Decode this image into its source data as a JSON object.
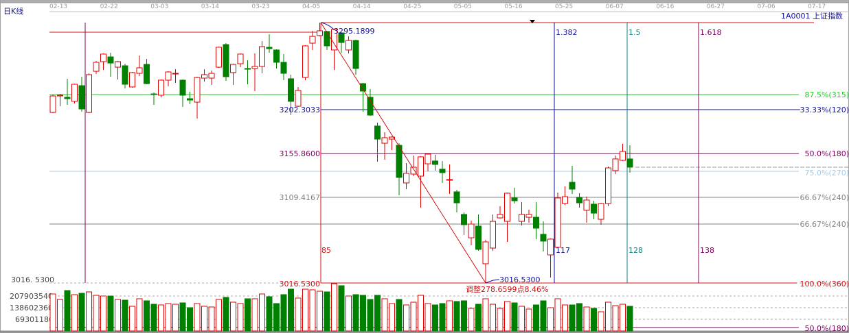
{
  "header": {
    "period_label": "日K线",
    "symbol_label": "1A0001 上证指数"
  },
  "colors": {
    "up": "#e00000",
    "down": "#008000",
    "fib_green": "#22cc22",
    "fib_blue": "#1010a0",
    "fib_purple": "#800060",
    "fib_lightblue": "#a8c8e0",
    "fib_gray": "#808080",
    "fib_red": "#d01010"
  },
  "annotations": {
    "high_label": "3295.1899",
    "low_label": "3016.5300",
    "adjust_label": "调整278.6599点8.46%",
    "left_levels": [
      "3202.3033",
      "3155.8600",
      "3109.4167",
      "3016.5300"
    ],
    "right_levels": [
      "87.5%(315)",
      "33.33%(120)",
      "50.0%(180)",
      "75.0%(270)",
      "66.67%(240)",
      "66.67%(240)",
      "100.0%(360)",
      "50.0%(180)"
    ],
    "time_ratios": [
      "1.382",
      "1.5",
      "1.618"
    ],
    "time_counts": [
      "85",
      "117",
      "128",
      "138"
    ]
  },
  "chart_data": {
    "type": "candlestick",
    "x_tick_labels": [
      "02-13",
      "02-22",
      "03-03",
      "03-14",
      "03-23",
      "04-05",
      "04-14",
      "04-25",
      "05-05",
      "05-16",
      "05-25",
      "06-07",
      "06-16",
      "06-27",
      "07-06",
      "07-17"
    ],
    "price_axis_label": "3016. 5300",
    "volume_tick_labels": [
      "207903540",
      "138602360",
      "69301180"
    ],
    "volume_ticks": [
      207903540,
      138602360,
      69301180
    ],
    "ylim": [
      3016.53,
      3295.19
    ],
    "grid": true,
    "ohlc": [
      [
        3199.1,
        3218.2,
        3198.4,
        3216.7
      ],
      [
        3216.7,
        3218.9,
        3205.7,
        3217.5
      ],
      [
        3215.3,
        3235.1,
        3207.2,
        3213.8
      ],
      [
        3210.9,
        3229.9,
        3208.7,
        3229.2
      ],
      [
        3227.7,
        3237.3,
        3199.9,
        3202.8
      ],
      [
        3199.1,
        3240.9,
        3198.4,
        3239.5
      ],
      [
        3243.1,
        3254.1,
        3240.2,
        3252.7
      ],
      [
        3253.4,
        3262.2,
        3244.6,
        3261.5
      ],
      [
        3258.5,
        3262.9,
        3237.3,
        3251.9
      ],
      [
        3247.5,
        3254.1,
        3234.3,
        3253.4
      ],
      [
        3249.0,
        3251.2,
        3224.8,
        3229.2
      ],
      [
        3226.3,
        3242.4,
        3225.5,
        3241.7
      ],
      [
        3240.9,
        3260.0,
        3238.0,
        3246.8
      ],
      [
        3250.5,
        3256.3,
        3229.2,
        3229.9
      ],
      [
        3218.9,
        3220.4,
        3207.2,
        3218.2
      ],
      [
        3217.5,
        3234.3,
        3215.3,
        3233.6
      ],
      [
        3233.6,
        3243.1,
        3227.0,
        3242.4
      ],
      [
        3240.2,
        3245.3,
        3230.7,
        3240.9
      ],
      [
        3233.6,
        3234.3,
        3205.0,
        3217.5
      ],
      [
        3213.8,
        3221.1,
        3207.9,
        3212.3
      ],
      [
        3210.1,
        3237.3,
        3192.5,
        3236.5
      ],
      [
        3235.8,
        3245.3,
        3232.1,
        3239.5
      ],
      [
        3235.8,
        3243.9,
        3228.5,
        3240.9
      ],
      [
        3247.5,
        3269.5,
        3246.8,
        3268.8
      ],
      [
        3271.7,
        3273.2,
        3232.9,
        3237.3
      ],
      [
        3241.7,
        3251.2,
        3228.5,
        3250.5
      ],
      [
        3251.2,
        3262.2,
        3247.5,
        3261.5
      ],
      [
        3246.1,
        3254.9,
        3229.2,
        3245.3
      ],
      [
        3246.1,
        3262.2,
        3221.9,
        3248.3
      ],
      [
        3248.3,
        3275.4,
        3240.9,
        3269.5
      ],
      [
        3268.8,
        3282.7,
        3262.9,
        3267.3
      ],
      [
        3265.9,
        3266.6,
        3246.1,
        3252.7
      ],
      [
        3252.7,
        3261.5,
        3233.6,
        3240.9
      ],
      [
        3235.1,
        3239.5,
        3196.2,
        3210.9
      ],
      [
        3205.7,
        3226.3,
        3205.0,
        3222.6
      ],
      [
        3236.5,
        3271.0,
        3233.6,
        3270.3
      ],
      [
        3273.2,
        3286.4,
        3265.9,
        3280.5
      ],
      [
        3281.3,
        3295.19,
        3280.5,
        3286.4
      ],
      [
        3285.7,
        3286.4,
        3265.9,
        3270.3
      ],
      [
        3265.9,
        3288.6,
        3244.6,
        3287.9
      ],
      [
        3284.2,
        3284.9,
        3262.9,
        3273.9
      ],
      [
        3265.9,
        3280.5,
        3262.2,
        3276.1
      ],
      [
        3276.1,
        3276.9,
        3239.5,
        3246.1
      ],
      [
        3229.9,
        3230.7,
        3199.9,
        3221.9
      ],
      [
        3215.3,
        3224.1,
        3195.5,
        3196.2
      ],
      [
        3184.5,
        3188.1,
        3146.3,
        3170.5
      ],
      [
        3166.1,
        3177.9,
        3148.5,
        3172.0
      ],
      [
        3170.5,
        3173.5,
        3158.8,
        3172.7
      ],
      [
        3163.9,
        3166.1,
        3110.4,
        3129.5
      ],
      [
        3123.6,
        3144.9,
        3117.0,
        3133.9
      ],
      [
        3133.1,
        3152.9,
        3130.9,
        3140.5
      ],
      [
        3130.9,
        3152.2,
        3097.2,
        3151.5
      ],
      [
        3144.1,
        3155.1,
        3136.1,
        3154.4
      ],
      [
        3147.1,
        3153.7,
        3136.8,
        3143.4
      ],
      [
        3138.3,
        3147.1,
        3123.6,
        3134.6
      ],
      [
        3126.5,
        3143.4,
        3111.9,
        3127.3
      ],
      [
        3114.1,
        3116.3,
        3092.1,
        3102.3
      ],
      [
        3089.9,
        3092.1,
        3067.9,
        3078.9
      ],
      [
        3064.9,
        3083.3,
        3056.9,
        3079.6
      ],
      [
        3077.4,
        3089.9,
        3051.0,
        3052.5
      ],
      [
        3037.1,
        3062.7,
        3016.53,
        3060.5
      ],
      [
        3053.9,
        3089.9,
        3051.0,
        3082.5
      ],
      [
        3086.2,
        3098.7,
        3085.5,
        3089.9
      ],
      [
        3082.5,
        3113.3,
        3060.5,
        3112.6
      ],
      [
        3107.5,
        3118.5,
        3101.6,
        3104.5
      ],
      [
        3082.5,
        3103.1,
        3078.1,
        3089.9
      ],
      [
        3086.9,
        3095.0,
        3081.1,
        3089.9
      ],
      [
        3086.9,
        3103.1,
        3063.5,
        3075.2
      ],
      [
        3068.6,
        3082.5,
        3050.3,
        3061.3
      ],
      [
        3046.6,
        3064.2,
        3022.4,
        3063.5
      ],
      [
        3054.7,
        3113.3,
        3053.9,
        3107.5
      ],
      [
        3101.6,
        3119.9,
        3100.1,
        3108.9
      ],
      [
        3124.3,
        3141.9,
        3111.9,
        3117.0
      ],
      [
        3108.2,
        3112.6,
        3097.2,
        3102.3
      ],
      [
        3094.3,
        3108.9,
        3081.1,
        3105.3
      ],
      [
        3100.9,
        3104.5,
        3084.7,
        3091.3
      ],
      [
        3084.7,
        3102.3,
        3078.9,
        3101.6
      ],
      [
        3101.6,
        3141.2,
        3098.7,
        3139.7
      ],
      [
        3136.8,
        3152.9,
        3133.1,
        3149.3
      ],
      [
        3147.8,
        3165.4,
        3147.1,
        3157.3
      ],
      [
        3149.3,
        3163.9,
        3134.6,
        3140.5
      ]
    ],
    "volume": [
      220100000,
      187500000,
      240500000,
      216100000,
      224200000,
      232400000,
      212000000,
      207900000,
      207900000,
      187500000,
      183400000,
      146800000,
      191600000,
      179400000,
      159000000,
      154900000,
      163100000,
      159000000,
      167100000,
      138600000,
      163100000,
      146800000,
      142700000,
      187500000,
      199700000,
      171200000,
      163100000,
      191600000,
      191600000,
      220100000,
      203800000,
      163100000,
      216100000,
      248700000,
      195700000,
      248700000,
      244600000,
      236400000,
      232400000,
      281300000,
      269100000,
      207900000,
      216100000,
      212000000,
      187500000,
      212000000,
      191600000,
      163100000,
      187500000,
      154900000,
      171200000,
      212000000,
      163100000,
      154900000,
      163100000,
      179400000,
      175300000,
      179400000,
      134500000,
      159000000,
      191600000,
      159000000,
      134500000,
      175300000,
      167100000,
      146800000,
      130400000,
      154900000,
      179400000,
      138600000,
      191600000,
      154900000,
      154900000,
      163100000,
      142700000,
      134500000,
      114100000,
      171200000,
      150800000,
      159000000,
      146800000
    ]
  }
}
